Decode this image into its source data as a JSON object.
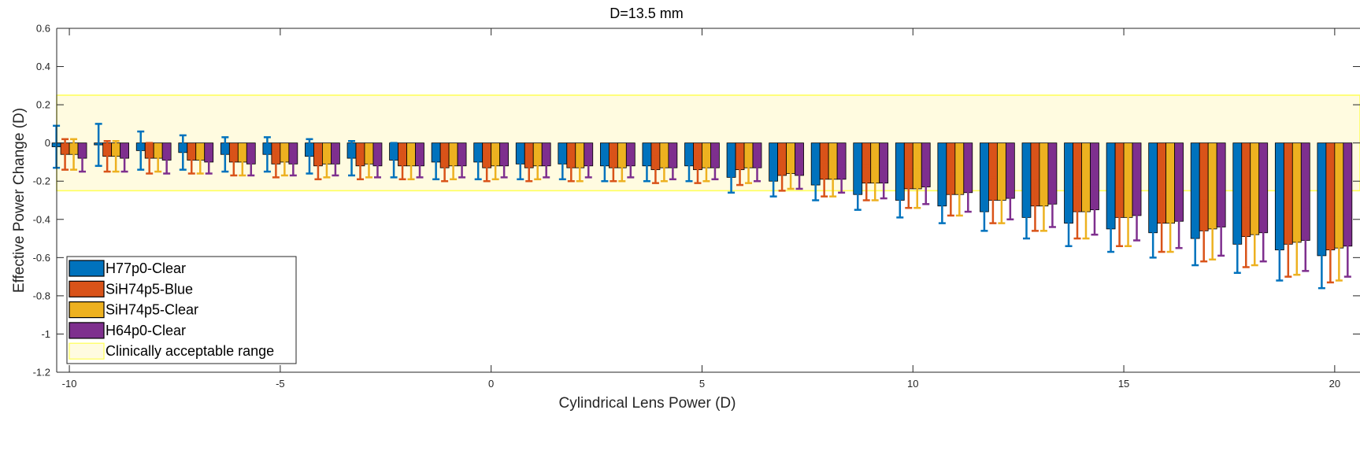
{
  "chart_data": {
    "type": "bar",
    "title": "D=13.5 mm",
    "xlabel": "Cylindrical Lens Power (D)",
    "ylabel": "Effective Power Change (D)",
    "xlim": [
      -10.3,
      20.6
    ],
    "ylim": [
      -1.2,
      0.6
    ],
    "xticks": [
      -10,
      -5,
      0,
      5,
      10,
      15,
      20
    ],
    "yticks": [
      -1.2,
      -1,
      -0.8,
      -0.6,
      -0.4,
      -0.2,
      0,
      0.2,
      0.4,
      0.6
    ],
    "x": [
      -10,
      -9,
      -8,
      -7,
      -6,
      -5,
      -4,
      -3,
      -2,
      -1,
      0,
      1,
      2,
      3,
      4,
      5,
      6,
      7,
      8,
      9,
      10,
      11,
      12,
      13,
      14,
      15,
      16,
      17,
      18,
      19,
      20
    ],
    "acceptable_range": {
      "name": "Clinically acceptable range",
      "low": -0.25,
      "high": 0.25,
      "color": "#ffff99"
    },
    "legend_position": "bottom-left",
    "series": [
      {
        "name": "H77p0-Clear",
        "color": "#0072BD",
        "values": [
          -0.02,
          -0.01,
          -0.04,
          -0.05,
          -0.06,
          -0.06,
          -0.07,
          -0.08,
          -0.09,
          -0.1,
          -0.1,
          -0.11,
          -0.11,
          -0.12,
          -0.12,
          -0.12,
          -0.18,
          -0.2,
          -0.22,
          -0.27,
          -0.3,
          -0.33,
          -0.36,
          -0.39,
          -0.42,
          -0.45,
          -0.47,
          -0.5,
          -0.53,
          -0.56,
          -0.59
        ],
        "errors": [
          0.11,
          0.11,
          0.1,
          0.09,
          0.09,
          0.09,
          0.09,
          0.09,
          0.09,
          0.09,
          0.09,
          0.08,
          0.08,
          0.08,
          0.08,
          0.08,
          0.08,
          0.08,
          0.08,
          0.08,
          0.09,
          0.09,
          0.1,
          0.11,
          0.12,
          0.12,
          0.13,
          0.14,
          0.15,
          0.16,
          0.17
        ]
      },
      {
        "name": "SiH74p5-Blue",
        "color": "#D95319",
        "values": [
          -0.06,
          -0.07,
          -0.08,
          -0.09,
          -0.1,
          -0.11,
          -0.12,
          -0.12,
          -0.12,
          -0.13,
          -0.13,
          -0.13,
          -0.13,
          -0.13,
          -0.14,
          -0.14,
          -0.14,
          -0.17,
          -0.19,
          -0.21,
          -0.24,
          -0.27,
          -0.3,
          -0.33,
          -0.36,
          -0.39,
          -0.42,
          -0.46,
          -0.49,
          -0.53,
          -0.56
        ],
        "errors": [
          0.08,
          0.08,
          0.08,
          0.07,
          0.07,
          0.07,
          0.07,
          0.07,
          0.07,
          0.07,
          0.07,
          0.07,
          0.07,
          0.07,
          0.07,
          0.07,
          0.08,
          0.08,
          0.09,
          0.09,
          0.1,
          0.11,
          0.12,
          0.13,
          0.14,
          0.15,
          0.15,
          0.16,
          0.16,
          0.17,
          0.17
        ]
      },
      {
        "name": "SiH74p5-Clear",
        "color": "#EDB120",
        "values": [
          -0.06,
          -0.07,
          -0.08,
          -0.09,
          -0.1,
          -0.1,
          -0.11,
          -0.11,
          -0.12,
          -0.12,
          -0.12,
          -0.12,
          -0.13,
          -0.13,
          -0.13,
          -0.13,
          -0.13,
          -0.16,
          -0.19,
          -0.21,
          -0.24,
          -0.27,
          -0.3,
          -0.33,
          -0.36,
          -0.39,
          -0.42,
          -0.45,
          -0.48,
          -0.52,
          -0.55
        ],
        "errors": [
          0.08,
          0.08,
          0.07,
          0.07,
          0.07,
          0.07,
          0.07,
          0.07,
          0.07,
          0.07,
          0.07,
          0.07,
          0.07,
          0.07,
          0.07,
          0.07,
          0.08,
          0.08,
          0.09,
          0.09,
          0.1,
          0.11,
          0.12,
          0.13,
          0.14,
          0.15,
          0.15,
          0.16,
          0.16,
          0.17,
          0.17
        ]
      },
      {
        "name": "H64p0-Clear",
        "color": "#7E2F8E",
        "values": [
          -0.08,
          -0.08,
          -0.09,
          -0.1,
          -0.11,
          -0.11,
          -0.11,
          -0.12,
          -0.12,
          -0.12,
          -0.12,
          -0.12,
          -0.12,
          -0.12,
          -0.13,
          -0.13,
          -0.13,
          -0.17,
          -0.19,
          -0.21,
          -0.23,
          -0.26,
          -0.29,
          -0.32,
          -0.35,
          -0.38,
          -0.41,
          -0.44,
          -0.47,
          -0.51,
          -0.54
        ],
        "errors": [
          0.07,
          0.07,
          0.07,
          0.06,
          0.06,
          0.06,
          0.06,
          0.06,
          0.06,
          0.06,
          0.06,
          0.06,
          0.06,
          0.06,
          0.06,
          0.06,
          0.07,
          0.07,
          0.07,
          0.08,
          0.09,
          0.1,
          0.11,
          0.12,
          0.13,
          0.13,
          0.14,
          0.15,
          0.15,
          0.16,
          0.16
        ]
      }
    ]
  }
}
